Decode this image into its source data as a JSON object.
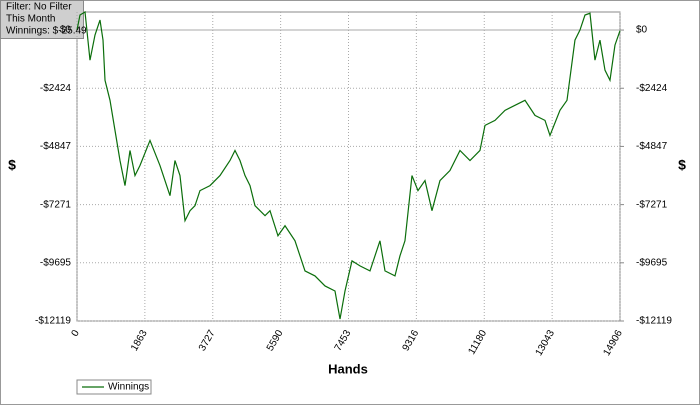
{
  "chart_data": {
    "type": "line",
    "info": [
      "Filter: No Filter",
      "This Month",
      "Winnings: $-25.49"
    ],
    "xlabel": "Hands",
    "ylabel": "$",
    "y2label": "$",
    "x": [
      0,
      82,
      220,
      357,
      494,
      631,
      714,
      769,
      906,
      1043,
      1180,
      1318,
      1455,
      1592,
      1729,
      2004,
      2278,
      2553,
      2690,
      2827,
      2965,
      3102,
      3239,
      3376,
      3651,
      3925,
      4200,
      4337,
      4474,
      4612,
      4749,
      4886,
      5161,
      5298,
      5517,
      5710,
      5984,
      6121,
      6259,
      6533,
      6808,
      7082,
      7220,
      7357,
      7549,
      7768,
      8043,
      8317,
      8455,
      8729,
      8866,
      9003,
      9196,
      9360,
      9553,
      9745,
      9964,
      10238,
      10513,
      10788,
      11062,
      11200,
      11474,
      11749,
      12023,
      12298,
      12572,
      12847,
      12984,
      13258,
      13451,
      13670,
      13807,
      13945,
      14082,
      14219,
      14356,
      14494,
      14631,
      14768,
      14906
    ],
    "series": [
      {
        "name": "Winnings",
        "color": "#0b6e0b",
        "values": [
          0,
          627,
          752,
          -1254,
          -209,
          418,
          -418,
          -2090,
          -2926,
          -4180,
          -5434,
          -6479,
          -5016,
          -6061,
          -5643,
          -4598,
          -5643,
          -6897,
          -5434,
          -6061,
          -7942,
          -7524,
          -7315,
          -6688,
          -6479,
          -6061,
          -5434,
          -5016,
          -5434,
          -6061,
          -6479,
          -7315,
          -7733,
          -7524,
          -8569,
          -8151,
          -8778,
          -9405,
          -10032,
          -10241,
          -10659,
          -10868,
          -12038,
          -10868,
          -9614,
          -9823,
          -10032,
          -8778,
          -10032,
          -10241,
          -9405,
          -8778,
          -6061,
          -6688,
          -6270,
          -7524,
          -6270,
          -5852,
          -5016,
          -5434,
          -5016,
          -3971,
          -3762,
          -3344,
          -3135,
          -2926,
          -3553,
          -3762,
          -4389,
          -3344,
          -2926,
          -418,
          0,
          627,
          700,
          -1254,
          -418,
          -1672,
          -2090,
          -627,
          -25.49
        ]
      }
    ],
    "xlim": [
      0,
      14906
    ],
    "xticks": [
      0,
      1863,
      3727,
      5590,
      7453,
      9316,
      11180,
      13043,
      14906
    ],
    "ylim": [
      -12119,
      752
    ],
    "yticks": [
      {
        "value": 0,
        "label": "$0"
      },
      {
        "value": -2424,
        "label": "-$2424"
      },
      {
        "value": -4847,
        "label": "-$4847"
      },
      {
        "value": -7271,
        "label": "-$7271"
      },
      {
        "value": -9695,
        "label": "-$9695"
      },
      {
        "value": -12119,
        "label": "-$12119"
      }
    ],
    "grid": true
  }
}
